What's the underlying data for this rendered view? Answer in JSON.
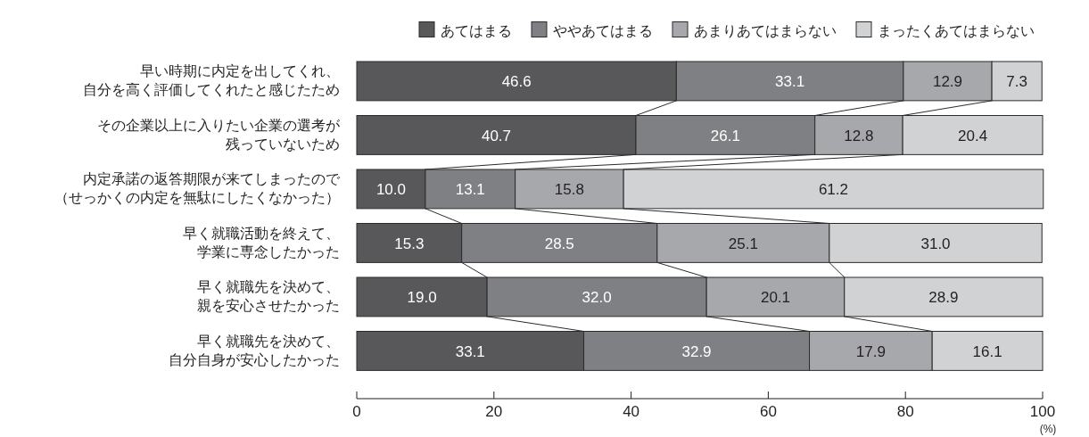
{
  "chart_data": {
    "type": "bar",
    "orientation": "horizontal",
    "stacked": true,
    "categories": [
      "早い時期に内定を出してくれ、自分を高く評価してくれたと感じたため",
      "その企業以上に入りたい企業の選考が残っていないため",
      "内定承諾の返答期限が来てしまったので（せっかくの内定を無駄にしたくなかった）",
      "早く就職活動を終えて、学業に専念したかった",
      "早く就職先を決めて、親を安心させたかった",
      "早く就職先を決めて、自分自身が安心したかった"
    ],
    "series": [
      {
        "name": "あてはまる",
        "color": "#58585a",
        "values": [
          46.6,
          40.7,
          10.0,
          15.3,
          19.0,
          33.1
        ],
        "value_labels": [
          "46.6",
          "40.7",
          "10.0",
          "15.3",
          "19.0",
          "33.1"
        ]
      },
      {
        "name": "ややあてはまる",
        "color": "#7f8084",
        "values": [
          33.1,
          26.1,
          13.1,
          28.5,
          32.0,
          32.9
        ],
        "value_labels": [
          "33.1",
          "26.1",
          "13.1",
          "28.5",
          "32.0",
          "32.9"
        ]
      },
      {
        "name": "あまりあてはまらない",
        "color": "#a7a8ab",
        "values": [
          12.9,
          12.8,
          15.8,
          25.1,
          20.1,
          17.9
        ],
        "value_labels": [
          "12.9",
          "12.8",
          "15.8",
          "25.1",
          "20.1",
          "17.9"
        ]
      },
      {
        "name": "まったくあてはまらない",
        "color": "#d1d2d4",
        "values": [
          7.3,
          20.4,
          61.2,
          31.0,
          28.9,
          16.1
        ],
        "value_labels": [
          "7.3",
          "20.4",
          "61.2",
          "31.0",
          "28.9",
          "16.1"
        ]
      }
    ],
    "xlim": [
      0,
      100
    ],
    "xticks": [
      0,
      20,
      40,
      60,
      80,
      100
    ],
    "xlabel": "(%)",
    "legend": "top"
  }
}
